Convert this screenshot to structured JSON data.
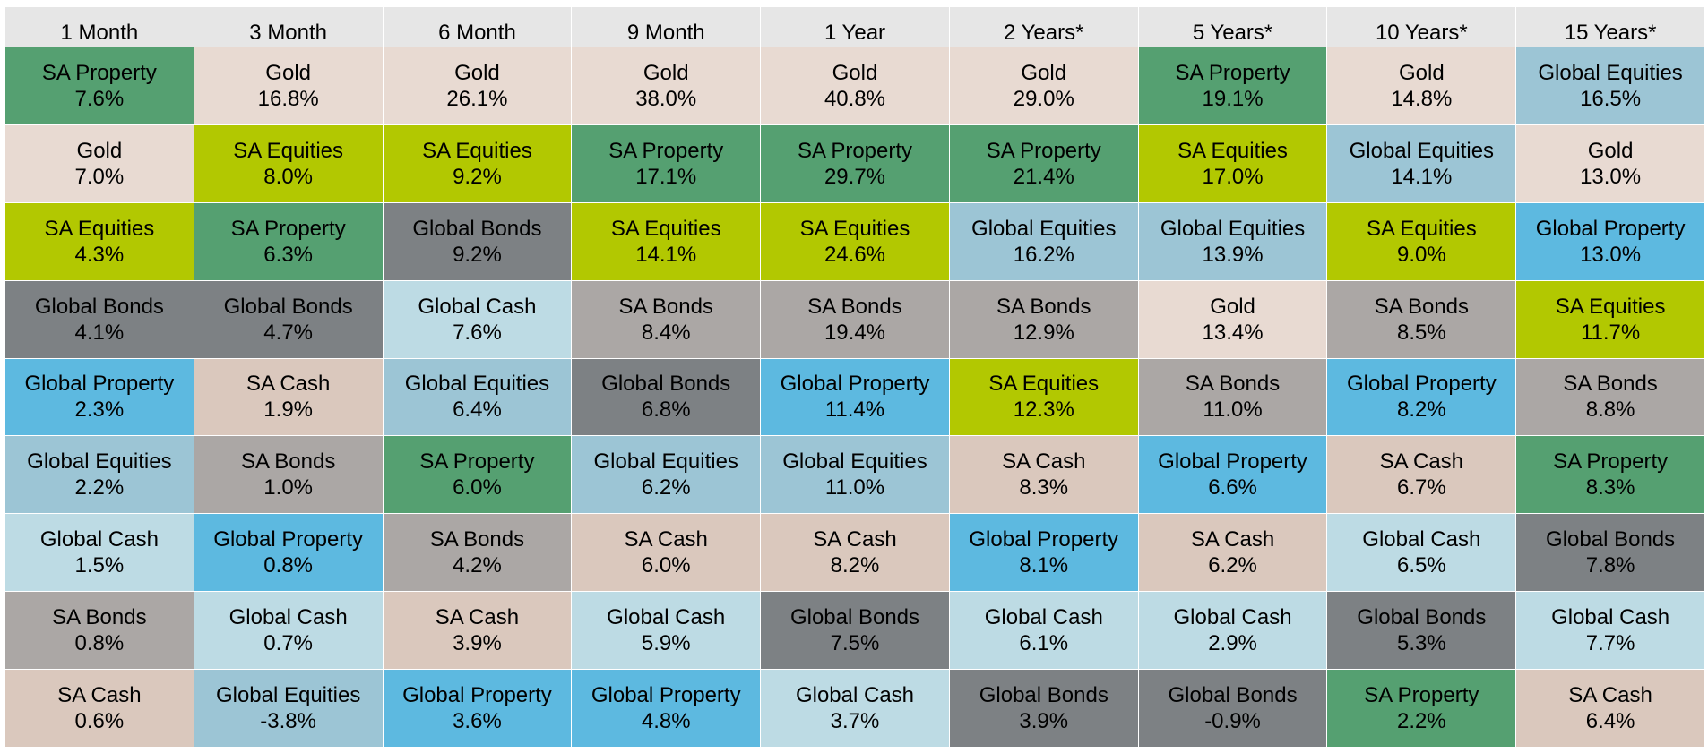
{
  "colors": {
    "SA Property": "#55a071",
    "Gold": "#e8dad2",
    "SA Equities": "#b2c801",
    "Global Bonds": "#7d8184",
    "Global Property": "#5db9e0",
    "Global Equities": "#9cc5d5",
    "Global Cash": "#bddbe4",
    "SA Bonds": "#aba7a5",
    "SA Cash": "#dac8bd",
    "header": "#e6e6e6"
  },
  "chart_data": {
    "type": "table",
    "title": "",
    "periods": [
      "1 Month",
      "3 Month",
      "6 Month",
      "9 Month",
      "1 Year",
      "2 Years*",
      "5 Years*",
      "10 Years*",
      "15 Years*"
    ],
    "columns": [
      [
        {
          "asset": "SA Property",
          "value": "7.6%"
        },
        {
          "asset": "Gold",
          "value": "7.0%"
        },
        {
          "asset": "SA Equities",
          "value": "4.3%"
        },
        {
          "asset": "Global Bonds",
          "value": "4.1%"
        },
        {
          "asset": "Global Property",
          "value": "2.3%"
        },
        {
          "asset": "Global Equities",
          "value": "2.2%"
        },
        {
          "asset": "Global Cash",
          "value": "1.5%"
        },
        {
          "asset": "SA Bonds",
          "value": "0.8%"
        },
        {
          "asset": "SA Cash",
          "value": "0.6%"
        }
      ],
      [
        {
          "asset": "Gold",
          "value": "16.8%"
        },
        {
          "asset": "SA Equities",
          "value": "8.0%"
        },
        {
          "asset": "SA Property",
          "value": "6.3%"
        },
        {
          "asset": "Global Bonds",
          "value": "4.7%"
        },
        {
          "asset": "SA Cash",
          "value": "1.9%"
        },
        {
          "asset": "SA Bonds",
          "value": "1.0%"
        },
        {
          "asset": "Global Property",
          "value": "0.8%"
        },
        {
          "asset": "Global Cash",
          "value": "0.7%"
        },
        {
          "asset": "Global Equities",
          "value": "-3.8%"
        }
      ],
      [
        {
          "asset": "Gold",
          "value": "26.1%"
        },
        {
          "asset": "SA Equities",
          "value": "9.2%"
        },
        {
          "asset": "Global Bonds",
          "value": "9.2%"
        },
        {
          "asset": "Global Cash",
          "value": "7.6%"
        },
        {
          "asset": "Global Equities",
          "value": "6.4%"
        },
        {
          "asset": "SA Property",
          "value": "6.0%"
        },
        {
          "asset": "SA Bonds",
          "value": "4.2%"
        },
        {
          "asset": "SA Cash",
          "value": "3.9%"
        },
        {
          "asset": "Global Property",
          "value": "3.6%"
        }
      ],
      [
        {
          "asset": "Gold",
          "value": "38.0%"
        },
        {
          "asset": "SA Property",
          "value": "17.1%"
        },
        {
          "asset": "SA Equities",
          "value": "14.1%"
        },
        {
          "asset": "SA Bonds",
          "value": "8.4%"
        },
        {
          "asset": "Global Bonds",
          "value": "6.8%"
        },
        {
          "asset": "Global Equities",
          "value": "6.2%"
        },
        {
          "asset": "SA Cash",
          "value": "6.0%"
        },
        {
          "asset": "Global Cash",
          "value": "5.9%"
        },
        {
          "asset": "Global Property",
          "value": "4.8%"
        }
      ],
      [
        {
          "asset": "Gold",
          "value": "40.8%"
        },
        {
          "asset": "SA Property",
          "value": "29.7%"
        },
        {
          "asset": "SA Equities",
          "value": "24.6%"
        },
        {
          "asset": "SA Bonds",
          "value": "19.4%"
        },
        {
          "asset": "Global Property",
          "value": "11.4%"
        },
        {
          "asset": "Global Equities",
          "value": "11.0%"
        },
        {
          "asset": "SA Cash",
          "value": "8.2%"
        },
        {
          "asset": "Global Bonds",
          "value": "7.5%"
        },
        {
          "asset": "Global Cash",
          "value": "3.7%"
        }
      ],
      [
        {
          "asset": "Gold",
          "value": "29.0%"
        },
        {
          "asset": "SA Property",
          "value": "21.4%"
        },
        {
          "asset": "Global Equities",
          "value": "16.2%"
        },
        {
          "asset": "SA Bonds",
          "value": "12.9%"
        },
        {
          "asset": "SA Equities",
          "value": "12.3%"
        },
        {
          "asset": "SA Cash",
          "value": "8.3%"
        },
        {
          "asset": "Global Property",
          "value": "8.1%"
        },
        {
          "asset": "Global Cash",
          "value": "6.1%"
        },
        {
          "asset": "Global Bonds",
          "value": "3.9%"
        }
      ],
      [
        {
          "asset": "SA Property",
          "value": "19.1%"
        },
        {
          "asset": "SA Equities",
          "value": "17.0%"
        },
        {
          "asset": "Global Equities",
          "value": "13.9%"
        },
        {
          "asset": "Gold",
          "value": "13.4%"
        },
        {
          "asset": "SA Bonds",
          "value": "11.0%"
        },
        {
          "asset": "Global Property",
          "value": "6.6%"
        },
        {
          "asset": "SA Cash",
          "value": "6.2%"
        },
        {
          "asset": "Global Cash",
          "value": "2.9%"
        },
        {
          "asset": "Global Bonds",
          "value": "-0.9%"
        }
      ],
      [
        {
          "asset": "Gold",
          "value": "14.8%"
        },
        {
          "asset": "Global Equities",
          "value": "14.1%"
        },
        {
          "asset": "SA Equities",
          "value": "9.0%"
        },
        {
          "asset": "SA Bonds",
          "value": "8.5%"
        },
        {
          "asset": "Global Property",
          "value": "8.2%"
        },
        {
          "asset": "SA Cash",
          "value": "6.7%"
        },
        {
          "asset": "Global Cash",
          "value": "6.5%"
        },
        {
          "asset": "Global Bonds",
          "value": "5.3%"
        },
        {
          "asset": "SA Property",
          "value": "2.2%"
        }
      ],
      [
        {
          "asset": "Global Equities",
          "value": "16.5%"
        },
        {
          "asset": "Gold",
          "value": "13.0%"
        },
        {
          "asset": "Global Property",
          "value": "13.0%"
        },
        {
          "asset": "SA Equities",
          "value": "11.7%"
        },
        {
          "asset": "SA Bonds",
          "value": "8.8%"
        },
        {
          "asset": "SA Property",
          "value": "8.3%"
        },
        {
          "asset": "Global Bonds",
          "value": "7.8%"
        },
        {
          "asset": "Global Cash",
          "value": "7.7%"
        },
        {
          "asset": "SA Cash",
          "value": "6.4%"
        }
      ]
    ]
  }
}
